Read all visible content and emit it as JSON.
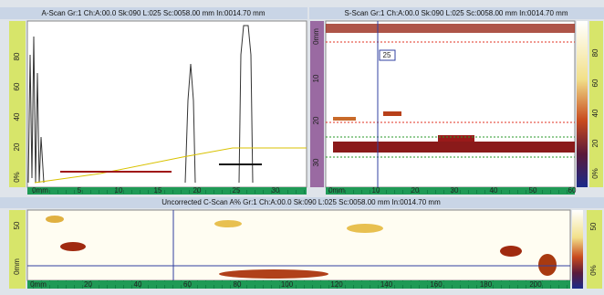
{
  "a_scan": {
    "title": "A-Scan Gr:1 Ch:A:00.0 Sk:090 L:025 Sc:0058.00 mm In:0014.70 mm",
    "y_scale": [
      "80",
      "60",
      "40",
      "20",
      "0%"
    ],
    "x_scale": [
      "0mm",
      "5",
      "10",
      "15",
      "20",
      "25",
      "30"
    ]
  },
  "s_scan": {
    "title": "S-Scan Gr:1 Ch:A:00.0 Sk:090 L:025 Sc:0058.00 mm In:0014.70 mm",
    "y_scale": [
      "0mm",
      "10",
      "20",
      "30"
    ],
    "cursor_label": "25",
    "x_scale": [
      "0mm",
      "10",
      "20",
      "30",
      "40",
      "50",
      "60"
    ],
    "right_scale": [
      "80",
      "60",
      "40",
      "20",
      "0%"
    ]
  },
  "c_scan": {
    "title": "Uncorrected C-Scan A% Gr:1 Ch:A:00.0 Sk:090 L:025 Sc:0058.00 mm In:0014.70 mm",
    "y_scale": [
      "50",
      "0mm"
    ],
    "x_scale": [
      "0mm",
      "20",
      "40",
      "60",
      "80",
      "100",
      "120",
      "140",
      "160",
      "180",
      "200"
    ],
    "right_scale": [
      "50",
      "0%"
    ]
  }
}
